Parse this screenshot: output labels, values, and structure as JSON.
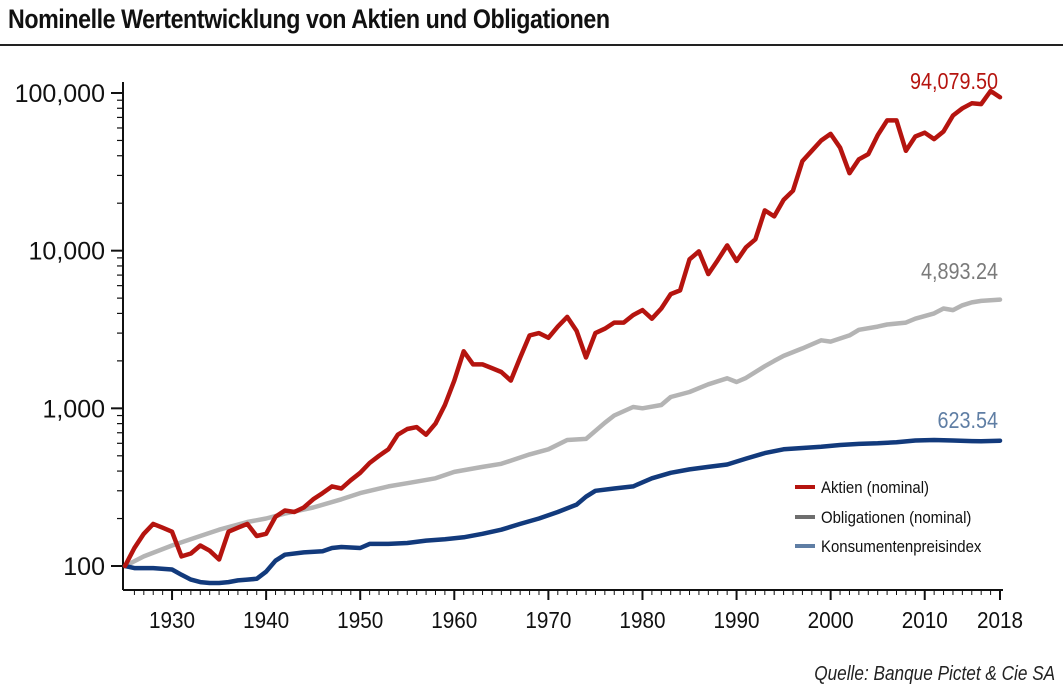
{
  "title": "Nominelle Wertentwicklung von Aktien und Obligationen",
  "source": "Quelle: Banque Pictet & Cie SA",
  "chart_data": {
    "type": "line",
    "y_scale": "log",
    "ylim": [
      100,
      100000
    ],
    "xlim": [
      1925,
      2019
    ],
    "y_ticks": [
      {
        "value": 100,
        "label": "100"
      },
      {
        "value": 1000,
        "label": "1,000"
      },
      {
        "value": 10000,
        "label": "10,000"
      },
      {
        "value": 100000,
        "label": "100,000"
      }
    ],
    "x_ticks": [
      {
        "value": 1930,
        "label": "1930"
      },
      {
        "value": 1940,
        "label": "1940"
      },
      {
        "value": 1950,
        "label": "1950"
      },
      {
        "value": 1960,
        "label": "1960"
      },
      {
        "value": 1970,
        "label": "1970"
      },
      {
        "value": 1980,
        "label": "1980"
      },
      {
        "value": 1990,
        "label": "1990"
      },
      {
        "value": 2000,
        "label": "2000"
      },
      {
        "value": 2010,
        "label": "2010"
      },
      {
        "value": 2018,
        "label": "2018"
      }
    ],
    "grid": false,
    "legend_position": "bottom-right",
    "series": [
      {
        "name": "Aktien (nominal)",
        "color": "#b5140f",
        "end_label": "94,079.50",
        "label_color": "#b5140f",
        "points": [
          [
            1925,
            100
          ],
          [
            1926,
            130
          ],
          [
            1927,
            160
          ],
          [
            1928,
            185
          ],
          [
            1929,
            175
          ],
          [
            1930,
            165
          ],
          [
            1931,
            115
          ],
          [
            1932,
            120
          ],
          [
            1933,
            135
          ],
          [
            1934,
            125
          ],
          [
            1935,
            110
          ],
          [
            1936,
            165
          ],
          [
            1937,
            175
          ],
          [
            1938,
            185
          ],
          [
            1939,
            155
          ],
          [
            1940,
            160
          ],
          [
            1941,
            205
          ],
          [
            1942,
            225
          ],
          [
            1943,
            220
          ],
          [
            1944,
            235
          ],
          [
            1945,
            265
          ],
          [
            1946,
            290
          ],
          [
            1947,
            320
          ],
          [
            1948,
            310
          ],
          [
            1949,
            350
          ],
          [
            1950,
            390
          ],
          [
            1951,
            450
          ],
          [
            1952,
            500
          ],
          [
            1953,
            550
          ],
          [
            1954,
            680
          ],
          [
            1955,
            740
          ],
          [
            1956,
            760
          ],
          [
            1957,
            680
          ],
          [
            1958,
            800
          ],
          [
            1959,
            1050
          ],
          [
            1960,
            1500
          ],
          [
            1961,
            2300
          ],
          [
            1962,
            1900
          ],
          [
            1963,
            1900
          ],
          [
            1964,
            1800
          ],
          [
            1965,
            1700
          ],
          [
            1966,
            1500
          ],
          [
            1967,
            2100
          ],
          [
            1968,
            2900
          ],
          [
            1969,
            3000
          ],
          [
            1970,
            2800
          ],
          [
            1971,
            3300
          ],
          [
            1972,
            3800
          ],
          [
            1973,
            3100
          ],
          [
            1974,
            2100
          ],
          [
            1975,
            3000
          ],
          [
            1976,
            3200
          ],
          [
            1977,
            3500
          ],
          [
            1978,
            3500
          ],
          [
            1979,
            3900
          ],
          [
            1980,
            4200
          ],
          [
            1981,
            3700
          ],
          [
            1982,
            4300
          ],
          [
            1983,
            5300
          ],
          [
            1984,
            5600
          ],
          [
            1985,
            8800
          ],
          [
            1986,
            9900
          ],
          [
            1987,
            7100
          ],
          [
            1988,
            8700
          ],
          [
            1989,
            10800
          ],
          [
            1990,
            8600
          ],
          [
            1991,
            10500
          ],
          [
            1992,
            11800
          ],
          [
            1993,
            18000
          ],
          [
            1994,
            16500
          ],
          [
            1995,
            21000
          ],
          [
            1996,
            24000
          ],
          [
            1997,
            37000
          ],
          [
            1998,
            43000
          ],
          [
            1999,
            50000
          ],
          [
            2000,
            55000
          ],
          [
            2001,
            45000
          ],
          [
            2002,
            31000
          ],
          [
            2003,
            38000
          ],
          [
            2004,
            41000
          ],
          [
            2005,
            54000
          ],
          [
            2006,
            67000
          ],
          [
            2007,
            67000
          ],
          [
            2008,
            43000
          ],
          [
            2009,
            53000
          ],
          [
            2010,
            56000
          ],
          [
            2011,
            51000
          ],
          [
            2012,
            57000
          ],
          [
            2013,
            72000
          ],
          [
            2014,
            80000
          ],
          [
            2015,
            86000
          ],
          [
            2016,
            85000
          ],
          [
            2017,
            103000
          ],
          [
            2018,
            94079.5
          ]
        ]
      },
      {
        "name": "Obligationen (nominal)",
        "color": "#b4b4b4",
        "legend_color": "#6e6e6e",
        "end_label": "4,893.24",
        "label_color": "#7a7a7a",
        "points": [
          [
            1925,
            100
          ],
          [
            1927,
            115
          ],
          [
            1930,
            135
          ],
          [
            1933,
            155
          ],
          [
            1935,
            170
          ],
          [
            1938,
            190
          ],
          [
            1940,
            200
          ],
          [
            1942,
            215
          ],
          [
            1945,
            235
          ],
          [
            1948,
            265
          ],
          [
            1950,
            290
          ],
          [
            1953,
            320
          ],
          [
            1955,
            335
          ],
          [
            1958,
            360
          ],
          [
            1960,
            395
          ],
          [
            1963,
            425
          ],
          [
            1965,
            445
          ],
          [
            1968,
            510
          ],
          [
            1970,
            550
          ],
          [
            1972,
            630
          ],
          [
            1974,
            640
          ],
          [
            1976,
            810
          ],
          [
            1977,
            900
          ],
          [
            1979,
            1020
          ],
          [
            1980,
            1000
          ],
          [
            1982,
            1050
          ],
          [
            1983,
            1180
          ],
          [
            1985,
            1270
          ],
          [
            1987,
            1420
          ],
          [
            1989,
            1550
          ],
          [
            1990,
            1470
          ],
          [
            1991,
            1560
          ],
          [
            1993,
            1850
          ],
          [
            1994,
            2000
          ],
          [
            1995,
            2150
          ],
          [
            1997,
            2400
          ],
          [
            1999,
            2700
          ],
          [
            2000,
            2650
          ],
          [
            2002,
            2900
          ],
          [
            2003,
            3150
          ],
          [
            2005,
            3300
          ],
          [
            2006,
            3400
          ],
          [
            2008,
            3500
          ],
          [
            2009,
            3700
          ],
          [
            2011,
            4000
          ],
          [
            2012,
            4300
          ],
          [
            2013,
            4200
          ],
          [
            2014,
            4500
          ],
          [
            2015,
            4700
          ],
          [
            2016,
            4800
          ],
          [
            2018,
            4893.24
          ]
        ]
      },
      {
        "name": "Konsumentenpreisindex",
        "color": "#123a7c",
        "legend_color": "#5f7ea4",
        "end_label": "623.54",
        "label_color": "#5f7ea4",
        "points": [
          [
            1925,
            100
          ],
          [
            1926,
            97
          ],
          [
            1928,
            97
          ],
          [
            1930,
            95
          ],
          [
            1931,
            88
          ],
          [
            1932,
            82
          ],
          [
            1933,
            79
          ],
          [
            1934,
            78
          ],
          [
            1935,
            78
          ],
          [
            1936,
            79
          ],
          [
            1937,
            81
          ],
          [
            1938,
            82
          ],
          [
            1939,
            83
          ],
          [
            1940,
            92
          ],
          [
            1941,
            108
          ],
          [
            1942,
            118
          ],
          [
            1944,
            122
          ],
          [
            1946,
            124
          ],
          [
            1947,
            130
          ],
          [
            1948,
            132
          ],
          [
            1950,
            130
          ],
          [
            1951,
            138
          ],
          [
            1953,
            138
          ],
          [
            1955,
            140
          ],
          [
            1957,
            145
          ],
          [
            1959,
            148
          ],
          [
            1961,
            152
          ],
          [
            1963,
            160
          ],
          [
            1965,
            170
          ],
          [
            1967,
            185
          ],
          [
            1969,
            200
          ],
          [
            1971,
            220
          ],
          [
            1973,
            245
          ],
          [
            1974,
            275
          ],
          [
            1975,
            300
          ],
          [
            1977,
            310
          ],
          [
            1979,
            320
          ],
          [
            1981,
            360
          ],
          [
            1983,
            390
          ],
          [
            1985,
            410
          ],
          [
            1987,
            425
          ],
          [
            1989,
            440
          ],
          [
            1991,
            480
          ],
          [
            1993,
            520
          ],
          [
            1995,
            550
          ],
          [
            1997,
            560
          ],
          [
            1999,
            570
          ],
          [
            2001,
            585
          ],
          [
            2003,
            595
          ],
          [
            2005,
            600
          ],
          [
            2007,
            610
          ],
          [
            2009,
            625
          ],
          [
            2011,
            630
          ],
          [
            2013,
            625
          ],
          [
            2015,
            620
          ],
          [
            2016,
            618
          ],
          [
            2018,
            623.54
          ]
        ]
      }
    ]
  }
}
